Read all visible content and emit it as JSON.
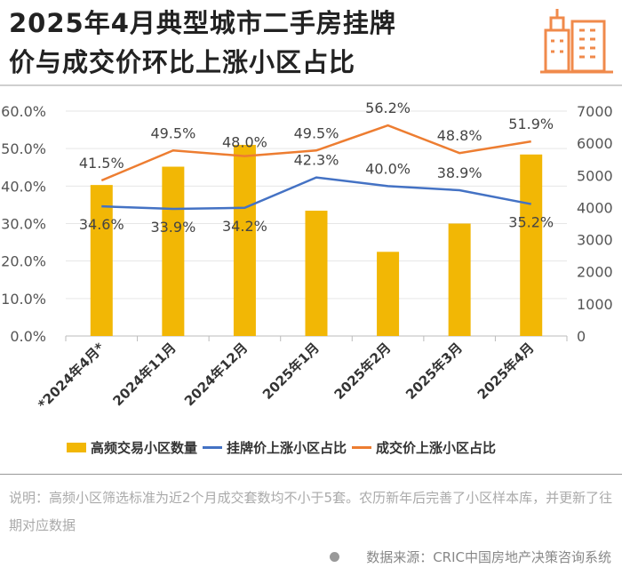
{
  "title_lines": [
    "2025年4月典型城市二手房挂牌",
    "价与成交价环比上涨小区占比"
  ],
  "note": "说明：高频小区筛选标准为近2个月成交套数均不小于5套。农历新年后完善了小区样本库，并更新了往期对应数据",
  "source": "数据来源：CRIC中国房地产决策咨询系统",
  "colors": {
    "bar": "#f2b705",
    "listing": "#4472c4",
    "deal": "#ed7d31"
  },
  "chart_data": {
    "type": "bar+line",
    "categories": [
      "*2024年4月*",
      "2024年11月",
      "2024年12月",
      "2025年1月",
      "2025年2月",
      "2025年3月",
      "2025年4月"
    ],
    "left_axis": {
      "ylim": [
        0,
        60
      ],
      "ticks": [
        "0.0%",
        "10.0%",
        "20.0%",
        "30.0%",
        "40.0%",
        "50.0%",
        "60.0%"
      ]
    },
    "right_axis": {
      "ylim": [
        0,
        7000
      ],
      "ticks": [
        "0",
        "1000",
        "2000",
        "3000",
        "4000",
        "5000",
        "6000",
        "7000"
      ]
    },
    "series": [
      {
        "name": "高频交易小区数量",
        "type": "bar",
        "axis": "right",
        "values": [
          4700,
          5270,
          5950,
          3900,
          2620,
          3500,
          5650
        ]
      },
      {
        "name": "挂牌价上涨小区占比",
        "type": "line",
        "axis": "left",
        "values": [
          34.6,
          33.9,
          34.2,
          42.3,
          40.0,
          38.9,
          35.2
        ],
        "labels": [
          "34.6%",
          "33.9%",
          "34.2%",
          "42.3%",
          "40.0%",
          "38.9%",
          "35.2%"
        ]
      },
      {
        "name": "成交价上涨小区占比",
        "type": "line",
        "axis": "left",
        "values": [
          41.5,
          49.5,
          48.0,
          49.5,
          56.2,
          48.8,
          51.9
        ],
        "labels": [
          "41.5%",
          "49.5%",
          "48.0%",
          "49.5%",
          "56.2%",
          "48.8%",
          "51.9%"
        ]
      }
    ],
    "grid": true,
    "legend": "bottom"
  }
}
